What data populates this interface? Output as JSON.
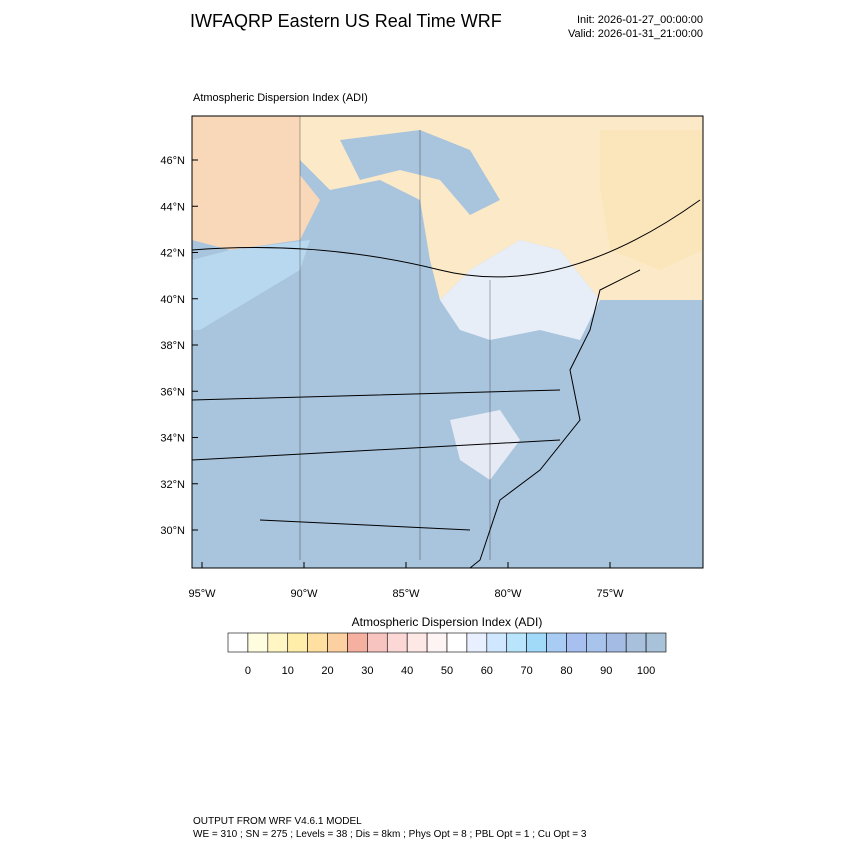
{
  "header": {
    "title": "IWFAQRP Eastern US Real Time WRF",
    "init": "Init: 2026-01-27_00:00:00",
    "valid": "Valid: 2026-01-31_21:00:00"
  },
  "map": {
    "title": "Atmospheric Dispersion Index   (ADI)",
    "lat_labels": [
      "46°N",
      "44°N",
      "42°N",
      "40°N",
      "38°N",
      "36°N",
      "34°N",
      "32°N",
      "30°N"
    ],
    "lon_labels": [
      "95°W",
      "90°W",
      "85°W",
      "80°W",
      "75°W"
    ]
  },
  "colorbar": {
    "title": "Atmospheric Dispersion Index  (ADI)",
    "labels": [
      "0",
      "10",
      "20",
      "30",
      "40",
      "50",
      "60",
      "70",
      "80",
      "90",
      "100"
    ],
    "colors": [
      "#ffffff",
      "#fffde0",
      "#fff6c4",
      "#ffeeaa",
      "#ffe0a0",
      "#fcd0a0",
      "#f6b0a0",
      "#f8c4c0",
      "#fbd8d6",
      "#fde8e6",
      "#fff4f4",
      "#ffffff",
      "#e8f0ff",
      "#d0e8ff",
      "#b8e4fc",
      "#a0daf8",
      "#a8ccf4",
      "#a8c0f0",
      "#a8c4ec",
      "#a4bce4",
      "#a8c0dc",
      "#a8c2da"
    ]
  },
  "footer": {
    "line1": "OUTPUT FROM WRF V4.6.1 MODEL",
    "line2": "WE = 310 ; SN = 275 ; Levels = 38 ; Dis = 8km ; Phys Opt = 8 ; PBL Opt = 1 ; Cu Opt = 3"
  }
}
